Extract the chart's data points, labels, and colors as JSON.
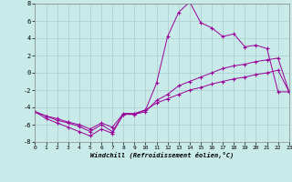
{
  "xlabel": "Windchill (Refroidissement éolien,°C)",
  "background_color": "#c8eae8",
  "line_color": "#990099",
  "grid_color": "#aacccc",
  "xlim": [
    0,
    23
  ],
  "ylim": [
    -8,
    8
  ],
  "xticks": [
    0,
    1,
    2,
    3,
    4,
    5,
    6,
    7,
    8,
    9,
    10,
    11,
    12,
    13,
    14,
    15,
    16,
    17,
    18,
    19,
    20,
    21,
    22,
    23
  ],
  "yticks": [
    -8,
    -6,
    -4,
    -2,
    0,
    2,
    4,
    6,
    8
  ],
  "line1_x": [
    0,
    1,
    2,
    3,
    4,
    5,
    6,
    7,
    8,
    9,
    10,
    11,
    12,
    13,
    14,
    15,
    16,
    17,
    18,
    19,
    20,
    21,
    22,
    23
  ],
  "line1_y": [
    -4.5,
    -5.3,
    -5.8,
    -6.3,
    -6.8,
    -7.3,
    -6.5,
    -7.0,
    -4.8,
    -4.8,
    -4.3,
    -1.2,
    4.2,
    7.0,
    8.2,
    5.8,
    5.2,
    4.2,
    4.5,
    3.0,
    3.2,
    2.8,
    -2.2,
    -2.2
  ],
  "line2_x": [
    0,
    1,
    2,
    3,
    4,
    5,
    6,
    7,
    8,
    9,
    10,
    11,
    12,
    13,
    14,
    15,
    16,
    17,
    18,
    19,
    20,
    21,
    22,
    23
  ],
  "line2_y": [
    -4.5,
    -5.0,
    -5.5,
    -5.8,
    -6.2,
    -6.8,
    -6.0,
    -6.8,
    -4.8,
    -4.8,
    -4.5,
    -3.2,
    -2.5,
    -1.5,
    -1.0,
    -0.5,
    0.0,
    0.5,
    0.8,
    1.0,
    1.3,
    1.5,
    1.7,
    -2.2
  ],
  "line3_x": [
    0,
    1,
    2,
    3,
    4,
    5,
    6,
    7,
    8,
    9,
    10,
    11,
    12,
    13,
    14,
    15,
    16,
    17,
    18,
    19,
    20,
    21,
    22,
    23
  ],
  "line3_y": [
    -4.5,
    -5.0,
    -5.3,
    -5.7,
    -6.0,
    -6.5,
    -5.8,
    -6.3,
    -4.7,
    -4.7,
    -4.3,
    -3.5,
    -3.0,
    -2.5,
    -2.0,
    -1.7,
    -1.3,
    -1.0,
    -0.7,
    -0.5,
    -0.2,
    0.0,
    0.3,
    -2.2
  ]
}
